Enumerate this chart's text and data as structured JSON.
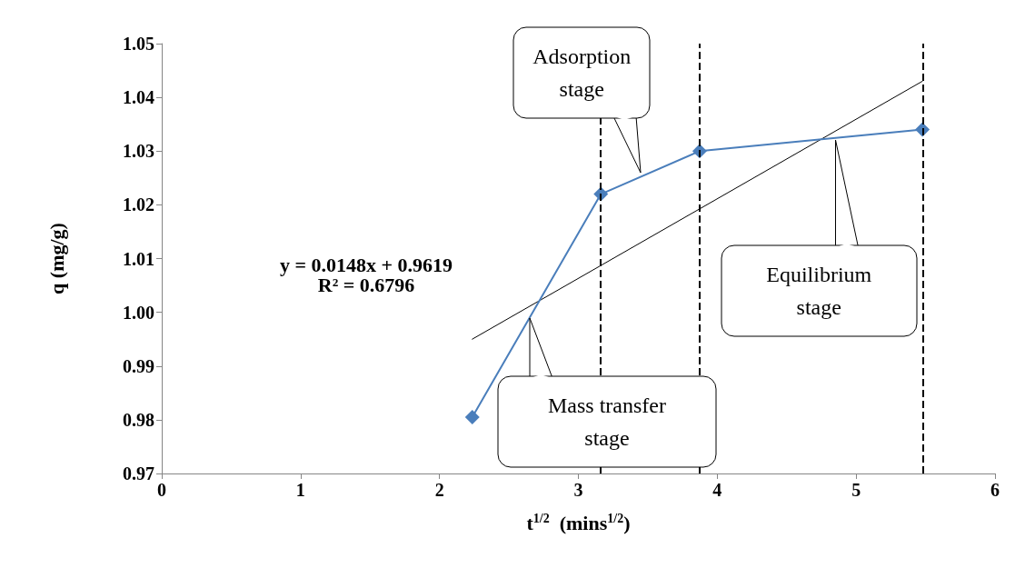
{
  "chart_data": {
    "type": "line",
    "xlabel": "t$^{1/2}$  (mins$^{1/2}$)",
    "ylabel": "q (mg/g)",
    "xlim": [
      0,
      6
    ],
    "xticks": [
      0,
      1,
      2,
      3,
      4,
      5,
      6
    ],
    "ylim": [
      0.97,
      1.05
    ],
    "yticks": [
      0.97,
      0.98,
      0.99,
      {
        "value": 1,
        "label": "1.00"
      },
      1.01,
      1.02,
      1.03,
      1.04,
      1.05
    ],
    "grid": false,
    "marker": "diamond",
    "line_style": "solid",
    "series": [
      {
        "color": "#4a7ebb",
        "x": [
          2.236,
          3.162,
          3.873,
          5.477
        ],
        "values": [
          0.9805,
          1.022,
          1.03,
          1.034
        ]
      },
      {
        "color": "#000000",
        "marker": "none",
        "x": [
          2.236,
          5.477
        ],
        "values": [
          0.995,
          1.043
        ]
      }
    ],
    "ref_lines": [
      {
        "axis": "x",
        "value": 3.162,
        "color": "#000000",
        "line_style": "dashed"
      },
      {
        "axis": "x",
        "value": 3.873,
        "color": "#000000",
        "line_style": "dashed"
      },
      {
        "axis": "x",
        "value": 5.477,
        "color": "#000000",
        "line_style": "dashed"
      }
    ],
    "annotations": [
      "y = 0.0148x + 0.9619\nR² = 0.6796",
      {
        "text": "Adsorption stage",
        "x": 3.45,
        "y": 1.026
      },
      {
        "text": "Equilibrium stage",
        "x": 4.85,
        "y": 1.032
      },
      {
        "text": "Mass transfer stage",
        "x": 2.65,
        "y": 0.999
      }
    ]
  }
}
